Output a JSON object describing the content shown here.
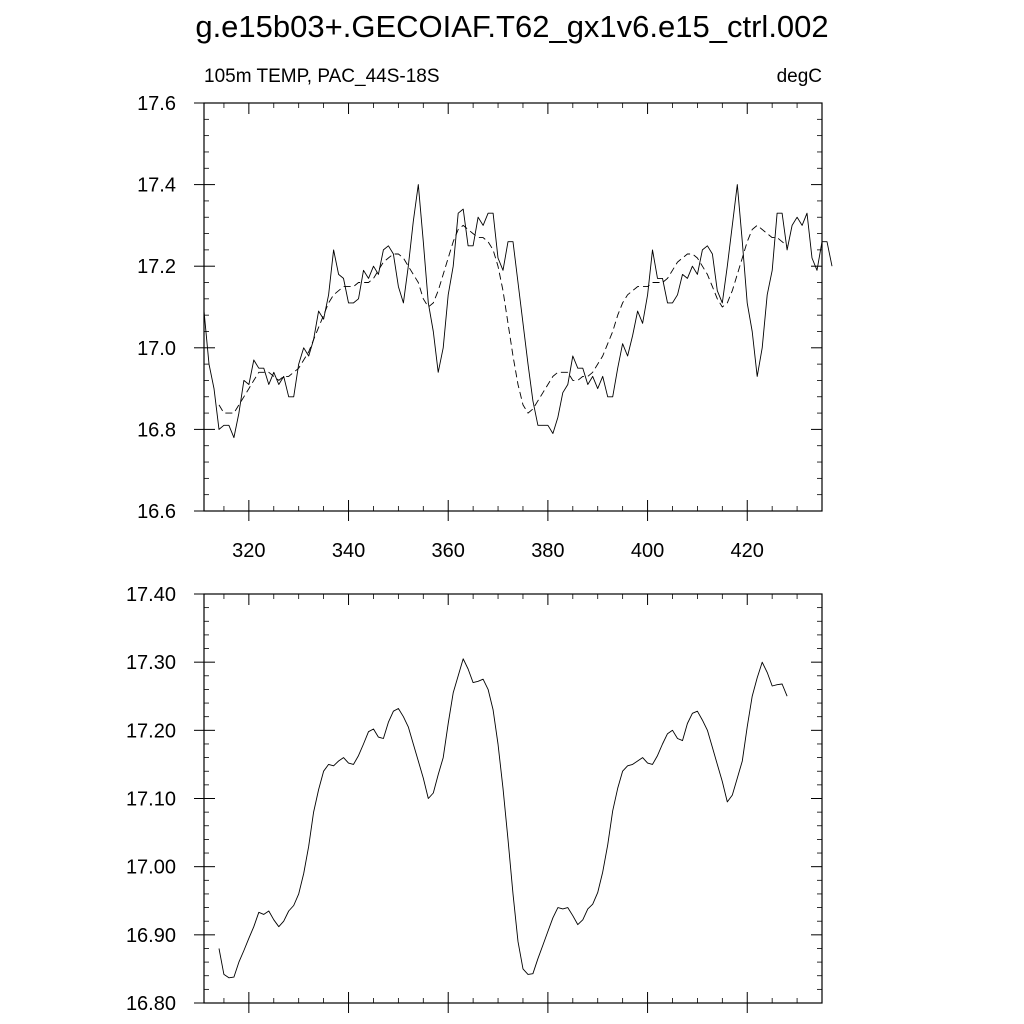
{
  "page": {
    "title": "g.e15b03+.GECOIAF.T62_gx1v6.e15_ctrl.002"
  },
  "chart_data": [
    {
      "type": "line",
      "subtitle_left": "105m TEMP, PAC_44S-18S",
      "subtitle_right": "degC",
      "xlim": [
        311,
        435
      ],
      "ylim": [
        16.6,
        17.6
      ],
      "x_ticks": [
        320,
        340,
        360,
        380,
        400,
        420
      ],
      "x_tick_labels": [
        "320",
        "340",
        "360",
        "380",
        "400",
        "420"
      ],
      "y_ticks": [
        16.6,
        16.8,
        17.0,
        17.2,
        17.4,
        17.6
      ],
      "y_tick_labels": [
        "16.6",
        "16.8",
        "17.0",
        "17.2",
        "17.4",
        "17.6"
      ],
      "grid": false,
      "series": [
        {
          "style": "solid",
          "x_start": 311,
          "x_step": 1,
          "values": [
            17.09,
            16.96,
            16.9,
            16.8,
            16.81,
            16.81,
            16.78,
            16.84,
            16.92,
            16.91,
            16.97,
            16.95,
            16.95,
            16.91,
            16.94,
            16.91,
            16.93,
            16.88,
            16.88,
            16.96,
            17.0,
            16.98,
            17.02,
            17.09,
            17.07,
            17.13,
            17.24,
            17.18,
            17.17,
            17.11,
            17.11,
            17.12,
            17.19,
            17.17,
            17.2,
            17.18,
            17.24,
            17.25,
            17.23,
            17.15,
            17.11,
            17.2,
            17.31,
            17.4,
            17.26,
            17.11,
            17.04,
            16.94,
            17.0,
            17.13,
            17.2,
            17.33,
            17.34,
            17.25,
            17.25,
            17.32,
            17.3,
            17.33,
            17.33,
            17.22,
            17.19,
            17.26,
            17.26,
            17.16,
            17.06,
            16.96,
            16.87,
            16.81,
            16.81,
            16.81,
            16.79,
            16.83,
            16.89,
            16.91,
            16.98,
            16.95,
            16.95,
            16.91,
            16.93,
            16.9,
            16.93,
            16.88,
            16.88,
            16.95,
            17.01,
            16.98,
            17.03,
            17.09,
            17.06,
            17.13,
            17.24,
            17.17,
            17.17,
            17.11,
            17.11,
            17.13,
            17.18,
            17.17,
            17.2,
            17.18,
            17.24,
            17.25,
            17.23,
            17.14,
            17.11,
            17.2,
            17.3,
            17.4,
            17.26,
            17.11,
            17.04,
            16.93,
            17.0,
            17.13,
            17.19,
            17.33,
            17.33,
            17.24,
            17.3,
            17.32,
            17.3,
            17.33,
            17.22,
            17.19,
            17.26,
            17.26,
            17.2
          ]
        },
        {
          "style": "dashed",
          "x_start": 314,
          "x_step": 1,
          "values": [
            16.86,
            16.84,
            16.84,
            16.84,
            16.86,
            16.88,
            16.9,
            16.92,
            16.94,
            16.94,
            16.94,
            16.93,
            16.92,
            16.93,
            16.93,
            16.94,
            16.95,
            16.97,
            16.99,
            17.02,
            17.05,
            17.08,
            17.11,
            17.13,
            17.14,
            17.15,
            17.15,
            17.15,
            17.16,
            17.16,
            17.16,
            17.17,
            17.19,
            17.21,
            17.22,
            17.23,
            17.23,
            17.22,
            17.2,
            17.18,
            17.16,
            17.12,
            17.1,
            17.11,
            17.14,
            17.18,
            17.22,
            17.26,
            17.29,
            17.3,
            17.29,
            17.28,
            17.27,
            17.27,
            17.26,
            17.24,
            17.2,
            17.14,
            17.06,
            16.98,
            16.91,
            16.86,
            16.84,
            16.85,
            16.87,
            16.89,
            16.91,
            16.93,
            16.94,
            16.94,
            16.94,
            16.92,
            16.92,
            16.93,
            16.93,
            16.94,
            16.96,
            16.98,
            17.01,
            17.04,
            17.08,
            17.11,
            17.13,
            17.14,
            17.15,
            17.15,
            17.15,
            17.16,
            17.16,
            17.16,
            17.17,
            17.19,
            17.21,
            17.22,
            17.23,
            17.23,
            17.22,
            17.2,
            17.18,
            17.15,
            17.12,
            17.1,
            17.11,
            17.14,
            17.18,
            17.22,
            17.26,
            17.29,
            17.3,
            17.29,
            17.28,
            17.27,
            17.27,
            17.26,
            17.25
          ]
        }
      ]
    },
    {
      "type": "line",
      "xlim": [
        311,
        435
      ],
      "ylim": [
        16.8,
        17.4
      ],
      "x_ticks": [
        320,
        340,
        360,
        380,
        400,
        420
      ],
      "y_ticks": [
        16.8,
        16.9,
        17.0,
        17.1,
        17.2,
        17.3,
        17.4
      ],
      "y_tick_labels": [
        "16.80",
        "16.90",
        "17.00",
        "17.10",
        "17.20",
        "17.30",
        "17.40"
      ],
      "grid": false,
      "series": [
        {
          "style": "solid",
          "x_start": 314,
          "x_step": 1,
          "values": [
            16.88,
            16.842,
            16.837,
            16.838,
            16.86,
            16.877,
            16.895,
            16.912,
            16.933,
            16.93,
            16.935,
            16.922,
            16.912,
            16.92,
            16.935,
            16.943,
            16.96,
            16.99,
            17.03,
            17.08,
            17.113,
            17.14,
            17.15,
            17.148,
            17.155,
            17.16,
            17.152,
            17.15,
            17.163,
            17.18,
            17.198,
            17.202,
            17.19,
            17.188,
            17.212,
            17.228,
            17.232,
            17.22,
            17.205,
            17.18,
            17.155,
            17.13,
            17.1,
            17.108,
            17.135,
            17.16,
            17.21,
            17.255,
            17.28,
            17.305,
            17.29,
            17.27,
            17.272,
            17.275,
            17.26,
            17.23,
            17.18,
            17.115,
            17.04,
            16.96,
            16.89,
            16.85,
            16.842,
            16.843,
            16.865,
            16.885,
            16.905,
            16.925,
            16.94,
            16.938,
            16.94,
            16.928,
            16.915,
            16.922,
            16.938,
            16.945,
            16.962,
            16.992,
            17.032,
            17.082,
            17.115,
            17.14,
            17.148,
            17.15,
            17.155,
            17.16,
            17.152,
            17.15,
            17.163,
            17.18,
            17.195,
            17.2,
            17.188,
            17.185,
            17.21,
            17.225,
            17.228,
            17.215,
            17.2,
            17.175,
            17.15,
            17.125,
            17.095,
            17.105,
            17.13,
            17.155,
            17.205,
            17.25,
            17.277,
            17.3,
            17.285,
            17.265,
            17.267,
            17.268,
            17.25
          ]
        }
      ]
    }
  ]
}
